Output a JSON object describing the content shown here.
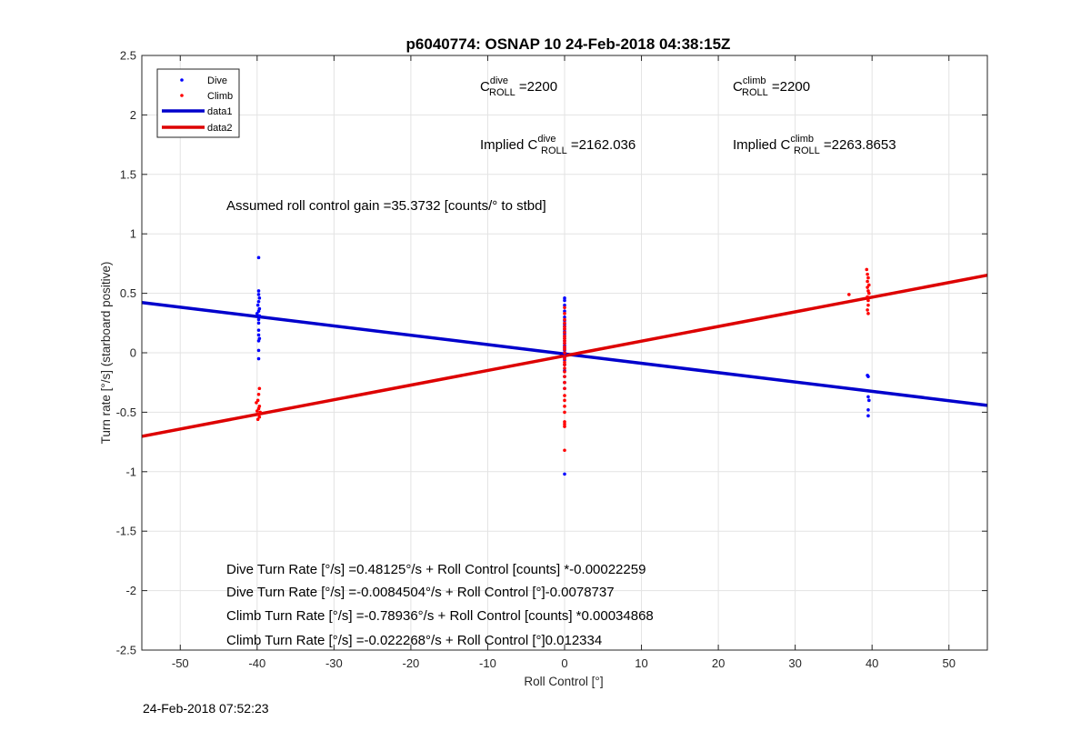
{
  "chart_data": {
    "type": "scatter",
    "title": "p6040774: OSNAP 10 24-Feb-2018 04:38:15Z",
    "xlabel": "Roll Control [°]",
    "ylabel": "Turn rate [°/s] (starboard positive)",
    "xlim": [
      -55,
      55
    ],
    "ylim": [
      -2.5,
      2.5
    ],
    "xticks": [
      -50,
      -40,
      -30,
      -20,
      -10,
      0,
      10,
      20,
      30,
      40,
      50
    ],
    "yticks": [
      -2.5,
      -2,
      -1.5,
      -1,
      -0.5,
      0,
      0.5,
      1,
      1.5,
      2,
      2.5
    ],
    "grid": true,
    "legend_position": "top-left",
    "legend": [
      "Dive",
      "Climb",
      "data1",
      "data2"
    ],
    "series": [
      {
        "name": "Dive",
        "kind": "points",
        "color": "#0000ff",
        "points": [
          [
            -39.8,
            0.8
          ],
          [
            -39.8,
            0.52
          ],
          [
            -39.8,
            0.49
          ],
          [
            -39.7,
            0.46
          ],
          [
            -39.8,
            0.43
          ],
          [
            -39.9,
            0.4
          ],
          [
            -39.7,
            0.37
          ],
          [
            -39.8,
            0.35
          ],
          [
            -40.0,
            0.33
          ],
          [
            -39.7,
            0.31
          ],
          [
            -39.8,
            0.28
          ],
          [
            -39.8,
            0.25
          ],
          [
            -39.8,
            0.19
          ],
          [
            -39.8,
            0.15
          ],
          [
            -39.7,
            0.12
          ],
          [
            -39.8,
            0.1
          ],
          [
            -39.8,
            0.02
          ],
          [
            -39.8,
            -0.05
          ],
          [
            0,
            0.46
          ],
          [
            0,
            0.44
          ],
          [
            0,
            0.4
          ],
          [
            0,
            0.35
          ],
          [
            0,
            0.3
          ],
          [
            0,
            0.27
          ],
          [
            0,
            0.24
          ],
          [
            0,
            0.22
          ],
          [
            0,
            0.2
          ],
          [
            0,
            0.18
          ],
          [
            0,
            0.16
          ],
          [
            0,
            0.14
          ],
          [
            0,
            0.12
          ],
          [
            0,
            0.1
          ],
          [
            0,
            0.08
          ],
          [
            0,
            0.06
          ],
          [
            0,
            0.04
          ],
          [
            0,
            0.02
          ],
          [
            0,
            0.0
          ],
          [
            0,
            -0.02
          ],
          [
            0,
            -0.04
          ],
          [
            0,
            -0.06
          ],
          [
            0,
            -0.1
          ],
          [
            0,
            -0.15
          ],
          [
            0,
            -0.2
          ],
          [
            0,
            -0.25
          ],
          [
            0,
            -0.3
          ],
          [
            0,
            -1.02
          ],
          [
            39.4,
            -0.19
          ],
          [
            39.5,
            -0.2
          ],
          [
            39.5,
            -0.37
          ],
          [
            39.6,
            -0.4
          ],
          [
            39.5,
            -0.48
          ],
          [
            39.5,
            -0.53
          ]
        ]
      },
      {
        "name": "Climb",
        "kind": "points",
        "color": "#ff0000",
        "points": [
          [
            -39.7,
            -0.3
          ],
          [
            -39.8,
            -0.35
          ],
          [
            -39.9,
            -0.4
          ],
          [
            -40.1,
            -0.42
          ],
          [
            -39.7,
            -0.45
          ],
          [
            -39.8,
            -0.47
          ],
          [
            -40.0,
            -0.49
          ],
          [
            -39.6,
            -0.5
          ],
          [
            -39.8,
            -0.52
          ],
          [
            -39.7,
            -0.54
          ],
          [
            -39.9,
            -0.56
          ],
          [
            0,
            0.38
          ],
          [
            0,
            0.33
          ],
          [
            0,
            0.28
          ],
          [
            0,
            0.25
          ],
          [
            0,
            0.22
          ],
          [
            0,
            0.2
          ],
          [
            0,
            0.17
          ],
          [
            0,
            0.14
          ],
          [
            0,
            0.12
          ],
          [
            0,
            0.1
          ],
          [
            0,
            0.08
          ],
          [
            0,
            0.05
          ],
          [
            0,
            0.03
          ],
          [
            0,
            0.0
          ],
          [
            0,
            -0.03
          ],
          [
            0,
            -0.05
          ],
          [
            0,
            -0.08
          ],
          [
            0,
            -0.1
          ],
          [
            0,
            -0.13
          ],
          [
            0,
            -0.16
          ],
          [
            0,
            -0.2
          ],
          [
            0,
            -0.25
          ],
          [
            0,
            -0.3
          ],
          [
            0,
            -0.36
          ],
          [
            0,
            -0.4
          ],
          [
            0,
            -0.45
          ],
          [
            0,
            -0.5
          ],
          [
            0,
            -0.58
          ],
          [
            0,
            -0.6
          ],
          [
            0,
            -0.62
          ],
          [
            0,
            -0.82
          ],
          [
            37.0,
            0.49
          ],
          [
            39.3,
            0.7
          ],
          [
            39.4,
            0.66
          ],
          [
            39.5,
            0.63
          ],
          [
            39.4,
            0.6
          ],
          [
            39.6,
            0.57
          ],
          [
            39.4,
            0.55
          ],
          [
            39.5,
            0.52
          ],
          [
            39.6,
            0.5
          ],
          [
            39.4,
            0.47
          ],
          [
            39.5,
            0.44
          ],
          [
            39.5,
            0.4
          ],
          [
            39.4,
            0.36
          ],
          [
            39.5,
            0.33
          ]
        ]
      },
      {
        "name": "data1",
        "kind": "line",
        "color": "#0000cc",
        "x": [
          -55,
          55
        ],
        "y": [
          0.4225,
          -0.4422
        ]
      },
      {
        "name": "data2",
        "kind": "line",
        "color": "#dd0000",
        "x": [
          -55,
          55
        ],
        "y": [
          -0.703,
          0.652
        ]
      }
    ],
    "annotations": {
      "c_dive": {
        "base": "C",
        "sup": "dive",
        "sub": "ROLL",
        "text": " =2200"
      },
      "c_climb": {
        "base": "C",
        "sup": "climb",
        "sub": "ROLL",
        "text": " =2200"
      },
      "implied_dive": {
        "prefix": "Implied C",
        "sup": "dive",
        "sub": "ROLL",
        "text": " =2162.036"
      },
      "implied_climb": {
        "prefix": "Implied C",
        "sup": "climb",
        "sub": "ROLL",
        "text": " =2263.8653"
      },
      "gain": "Assumed roll control gain =35.3732 [counts/° to stbd]",
      "fit_lines": [
        "Dive Turn Rate [°/s] =0.48125°/s + Roll Control [counts] *-0.00022259",
        "Dive Turn Rate [°/s] =-0.0084504°/s + Roll Control [°]-0.0078737",
        "Climb Turn Rate [°/s] =-0.78936°/s + Roll Control [counts] *0.00034868",
        "Climb Turn Rate [°/s] =-0.022268°/s + Roll Control [°]0.012334"
      ]
    }
  },
  "footer": {
    "timestamp": "24-Feb-2018 07:52:23"
  }
}
